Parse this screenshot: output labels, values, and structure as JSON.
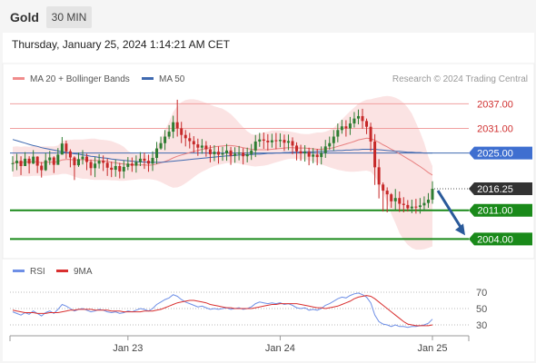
{
  "header": {
    "symbol": "Gold",
    "timeframe": "30 MIN",
    "timestamp": "Thursday, January 25, 2024 1:14:21 AM CET"
  },
  "legend": {
    "ma20": "MA 20 + Bollinger Bands",
    "ma50": "MA 50",
    "credit": "Research © 2024 Trading Central",
    "rsi": "RSI",
    "rsi_ma": "9MA"
  },
  "colors": {
    "up": "#2e7d32",
    "down": "#c62828",
    "resistance": "#f0a0a0",
    "support": "#1a8a1a",
    "ma50": "#3f69b0",
    "bb": "#fbe3e3",
    "ma20": "#e88080",
    "rsi": "#6e8fe6",
    "rsi_ma": "#d93030",
    "arrow": "#2a5a9a",
    "price_tag": "#333333",
    "ma_tag": "#3f6fd0"
  },
  "chart_data": [
    {
      "type": "candlestick",
      "ylim": [
        1999.2,
        2041.3
      ],
      "levels": [
        {
          "value": 2037.0,
          "label": "2037.00",
          "kind": "resistance"
        },
        {
          "value": 2031.0,
          "label": "2031.00",
          "kind": "resistance"
        },
        {
          "value": 2011.0,
          "label": "2011.00",
          "kind": "support"
        },
        {
          "value": 2004.0,
          "label": "2004.00",
          "kind": "support"
        }
      ],
      "ma50_value": {
        "value": 2025.0,
        "label": "2025.00"
      },
      "last_price": {
        "value": 2016.25,
        "label": "2016.25"
      },
      "target": 2004.0,
      "x_ticks": [
        "Jan 23",
        "Jan 24",
        "Jan 25"
      ],
      "close": [
        2022.5,
        2023.1,
        2021.8,
        2023.6,
        2022.4,
        2024.1,
        2021.9,
        2020.8,
        2023.2,
        2023.9,
        2022.1,
        2024.6,
        2027.3,
        2025.4,
        2023.9,
        2022.0,
        2023.5,
        2024.1,
        2022.8,
        2021.3,
        2022.4,
        2023.1,
        2022.6,
        2021.4,
        2020.9,
        2021.8,
        2020.5,
        2021.6,
        2022.4,
        2021.9,
        2022.8,
        2023.6,
        2023.1,
        2022.4,
        2023.8,
        2026.1,
        2027.4,
        2029.0,
        2030.2,
        2032.5,
        2031.0,
        2029.4,
        2028.6,
        2027.9,
        2027.1,
        2026.3,
        2026.8,
        2025.9,
        2024.7,
        2025.3,
        2024.6,
        2024.9,
        2025.6,
        2024.3,
        2024.8,
        2025.1,
        2024.2,
        2024.7,
        2025.6,
        2027.8,
        2028.3,
        2028.0,
        2027.6,
        2028.1,
        2027.9,
        2028.2,
        2027.5,
        2027.9,
        2026.8,
        2025.4,
        2024.9,
        2025.3,
        2024.1,
        2024.6,
        2024.0,
        2025.0,
        2026.6,
        2027.4,
        2029.0,
        2030.6,
        2031.5,
        2031.0,
        2032.2,
        2033.4,
        2034.0,
        2032.8,
        2031.4,
        2027.8,
        2021.5,
        2017.3,
        2015.8,
        2014.9,
        2013.2,
        2014.0,
        2012.6,
        2012.3,
        2011.5,
        2011.9,
        2011.8,
        2012.2,
        2012.8,
        2013.6,
        2016.25
      ],
      "high": [
        2024.2,
        2024.8,
        2024.2,
        2025.2,
        2024.2,
        2025.7,
        2024.2,
        2022.8,
        2025.0,
        2025.5,
        2024.2,
        2026.2,
        2028.9,
        2028.0,
        2025.9,
        2024.2,
        2025.1,
        2025.7,
        2024.8,
        2023.4,
        2024.0,
        2024.7,
        2024.4,
        2023.6,
        2022.9,
        2023.4,
        2022.6,
        2023.2,
        2024.0,
        2023.9,
        2024.4,
        2025.2,
        2025.1,
        2024.6,
        2025.4,
        2027.7,
        2029.0,
        2030.6,
        2031.8,
        2034.1,
        2038.0,
        2032.6,
        2030.6,
        2029.9,
        2029.1,
        2028.5,
        2028.4,
        2027.9,
        2026.9,
        2026.9,
        2026.6,
        2026.5,
        2027.2,
        2026.5,
        2026.4,
        2026.7,
        2026.2,
        2026.3,
        2027.2,
        2029.4,
        2029.9,
        2030.0,
        2029.6,
        2029.7,
        2029.9,
        2029.8,
        2029.5,
        2029.5,
        2028.8,
        2027.6,
        2027.0,
        2026.9,
        2026.3,
        2026.2,
        2026.0,
        2026.6,
        2028.2,
        2029.0,
        2030.6,
        2032.2,
        2033.1,
        2033.0,
        2033.8,
        2035.0,
        2035.6,
        2035.8,
        2033.4,
        2032.4,
        2029.6,
        2023.5,
        2017.8,
        2016.6,
        2015.2,
        2016.2,
        2015.6,
        2014.2,
        2013.5,
        2013.6,
        2013.8,
        2014.0,
        2014.4,
        2015.2,
        2018.1
      ],
      "low": [
        2020.5,
        2020.8,
        2019.6,
        2021.8,
        2020.0,
        2022.3,
        2020.1,
        2019.0,
        2020.6,
        2022.1,
        2020.1,
        2022.3,
        2024.6,
        2023.6,
        2021.5,
        2018.4,
        2021.6,
        2022.2,
        2020.8,
        2019.5,
        2019.1,
        2021.2,
        2020.6,
        2019.4,
        2019.1,
        2019.2,
        2018.8,
        2018.8,
        2020.8,
        2020.4,
        2020.2,
        2021.8,
        2021.1,
        2020.4,
        2020.6,
        2022.3,
        2025.8,
        2025.7,
        2028.4,
        2028.6,
        2029.0,
        2027.4,
        2026.6,
        2026.1,
        2025.1,
        2024.3,
        2024.8,
        2024.1,
        2022.7,
        2023.0,
        2022.4,
        2023.1,
        2023.1,
        2022.1,
        2022.6,
        2023.2,
        2022.2,
        2022.7,
        2023.3,
        2024.0,
        2026.5,
        2026.0,
        2025.6,
        2026.3,
        2025.9,
        2026.4,
        2025.5,
        2025.7,
        2024.7,
        2023.2,
        2023.1,
        2022.9,
        2022.0,
        2022.5,
        2022.0,
        2022.2,
        2023.8,
        2025.8,
        2025.6,
        2027.6,
        2029.7,
        2029.0,
        2029.4,
        2031.2,
        2032.0,
        2030.9,
        2029.6,
        2025.4,
        2017.2,
        2013.9,
        2010.7,
        2010.5,
        2011.6,
        2011.1,
        2010.6,
        2010.5,
        2010.7,
        2010.3,
        2010.2,
        2010.2,
        2010.8,
        2011.6,
        2012.6
      ],
      "ma20": [
        2022.6,
        2022.7,
        2022.6,
        2022.8,
        2022.8,
        2022.9,
        2022.8,
        2022.6,
        2022.7,
        2022.8,
        2022.7,
        2022.9,
        2023.3,
        2023.4,
        2023.4,
        2023.3,
        2023.3,
        2023.4,
        2023.3,
        2023.2,
        2023.2,
        2023.1,
        2023.1,
        2022.9,
        2022.7,
        2022.6,
        2022.4,
        2022.3,
        2022.2,
        2022.1,
        2022.1,
        2022.1,
        2022.1,
        2022.0,
        2022.1,
        2022.3,
        2022.6,
        2022.9,
        2023.3,
        2023.8,
        2024.2,
        2024.5,
        2024.8,
        2025.1,
        2025.4,
        2025.6,
        2025.9,
        2026.1,
        2026.3,
        2026.5,
        2026.6,
        2026.7,
        2026.8,
        2026.8,
        2026.7,
        2026.5,
        2026.3,
        2026.1,
        2025.9,
        2025.8,
        2025.8,
        2025.8,
        2025.8,
        2025.9,
        2026.0,
        2026.1,
        2026.2,
        2026.3,
        2026.3,
        2026.2,
        2026.2,
        2026.2,
        2026.1,
        2026.0,
        2025.9,
        2025.9,
        2026.0,
        2026.1,
        2026.3,
        2026.6,
        2026.9,
        2027.2,
        2027.5,
        2027.8,
        2028.2,
        2028.4,
        2028.6,
        2028.5,
        2028.1,
        2027.6,
        2027.0,
        2026.5,
        2025.9,
        2025.4,
        2024.8,
        2024.2,
        2023.6,
        2023.0,
        2022.3,
        2021.7,
        2021.0,
        2020.2,
        2019.6
      ],
      "bb_upper": [
        2026.5,
        2026.6,
        2026.5,
        2026.6,
        2026.5,
        2026.7,
        2026.6,
        2026.6,
        2026.6,
        2026.6,
        2026.6,
        2026.8,
        2027.9,
        2028.2,
        2028.2,
        2028.3,
        2028.3,
        2028.3,
        2028.4,
        2028.5,
        2028.5,
        2028.3,
        2028.2,
        2028.1,
        2027.9,
        2027.5,
        2027.1,
        2026.5,
        2025.5,
        2024.9,
        2024.8,
        2024.7,
        2024.6,
        2024.4,
        2024.8,
        2026.5,
        2028.4,
        2030.6,
        2032.6,
        2035.0,
        2036.4,
        2037.4,
        2037.9,
        2038.1,
        2038.1,
        2037.9,
        2037.6,
        2037.2,
        2036.8,
        2036.4,
        2036.1,
        2035.8,
        2035.2,
        2034.5,
        2033.5,
        2032.4,
        2031.3,
        2030.3,
        2029.6,
        2029.4,
        2029.7,
        2030.0,
        2030.2,
        2030.5,
        2030.5,
        2030.5,
        2030.4,
        2030.3,
        2030.1,
        2029.9,
        2029.7,
        2029.6,
        2029.6,
        2029.8,
        2030.0,
        2030.0,
        2030.2,
        2030.6,
        2031.2,
        2032.1,
        2033.2,
        2034.2,
        2035.2,
        2036.1,
        2037.0,
        2037.6,
        2038.0,
        2038.1,
        2038.4,
        2038.6,
        2038.8,
        2038.9,
        2038.8,
        2038.5,
        2038.0,
        2037.2,
        2036.1,
        2034.6,
        2032.4,
        2030.1,
        2027.5,
        2024.1,
        2021.8
      ],
      "bb_lower": [
        2019.2,
        2019.2,
        2019.3,
        2019.3,
        2019.3,
        2019.4,
        2019.4,
        2019.4,
        2019.4,
        2019.5,
        2019.6,
        2019.7,
        2019.9,
        2019.9,
        2019.6,
        2019.2,
        2018.9,
        2018.7,
        2018.7,
        2018.5,
        2018.4,
        2018.4,
        2018.4,
        2018.4,
        2018.3,
        2018.3,
        2018.2,
        2018.2,
        2018.3,
        2018.4,
        2018.5,
        2018.6,
        2018.6,
        2018.6,
        2018.5,
        2018.3,
        2017.9,
        2017.4,
        2016.9,
        2016.5,
        2016.6,
        2017.0,
        2017.6,
        2018.3,
        2019.1,
        2019.8,
        2020.4,
        2020.9,
        2021.4,
        2021.8,
        2022.1,
        2022.3,
        2022.5,
        2022.6,
        2022.6,
        2022.4,
        2022.2,
        2022.0,
        2021.8,
        2021.7,
        2021.8,
        2021.9,
        2022.1,
        2022.4,
        2022.7,
        2023.0,
        2023.3,
        2023.5,
        2023.6,
        2023.6,
        2023.5,
        2023.4,
        2023.2,
        2022.9,
        2022.6,
        2022.2,
        2021.9,
        2021.5,
        2021.2,
        2020.9,
        2020.7,
        2020.5,
        2020.4,
        2020.4,
        2020.5,
        2020.6,
        2020.7,
        2020.4,
        2019.3,
        2017.6,
        2015.4,
        2012.9,
        2010.1,
        2007.9,
        2005.4,
        2003.8,
        2002.6,
        2001.8,
        2001.4,
        2001.4,
        2001.5,
        2001.8,
        2002.2
      ],
      "ma50": [
        2028.3,
        2028.0,
        2027.7,
        2027.4,
        2027.1,
        2026.8,
        2026.6,
        2026.3,
        2026.1,
        2025.9,
        2025.7,
        2025.5,
        2025.3,
        2025.2,
        2025.0,
        2024.8,
        2024.7,
        2024.5,
        2024.4,
        2024.2,
        2024.1,
        2023.9,
        2023.8,
        2023.7,
        2023.5,
        2023.4,
        2023.3,
        2023.2,
        2023.1,
        2023.0,
        2022.9,
        2022.8,
        2022.8,
        2022.7,
        2022.7,
        2022.7,
        2022.7,
        2022.8,
        2022.9,
        2023.0,
        2023.1,
        2023.2,
        2023.3,
        2023.4,
        2023.5,
        2023.6,
        2023.7,
        2023.8,
        2023.9,
        2024.0,
        2024.1,
        2024.2,
        2024.3,
        2024.3,
        2024.4,
        2024.5,
        2024.5,
        2024.6,
        2024.6,
        2024.7,
        2024.7,
        2024.8,
        2024.9,
        2024.9,
        2025.0,
        2025.0,
        2025.1,
        2025.1,
        2025.2,
        2025.2,
        2025.2,
        2025.3,
        2025.3,
        2025.3,
        2025.4,
        2025.4,
        2025.4,
        2025.5,
        2025.5,
        2025.6,
        2025.6,
        2025.7,
        2025.7,
        2025.8,
        2025.8,
        2025.9,
        2025.9,
        2025.9,
        2025.9,
        2025.8,
        2025.7,
        2025.6,
        2025.5,
        2025.4,
        2025.4,
        2025.3,
        2025.2,
        2025.2,
        2025.1,
        2025.1,
        2025.0,
        2025.0,
        2025.0
      ]
    },
    {
      "type": "line",
      "title": "RSI",
      "ylim": [
        20,
        80
      ],
      "y_ticks": [
        70,
        50,
        30
      ],
      "series": [
        {
          "name": "RSI",
          "values": [
            46,
            44,
            42,
            45,
            43,
            47,
            44,
            41,
            45,
            47,
            44,
            49,
            55,
            53,
            50,
            47,
            49,
            50,
            48,
            46,
            47,
            49,
            48,
            46,
            45,
            46,
            44,
            45,
            47,
            46,
            48,
            50,
            49,
            47,
            50,
            55,
            58,
            61,
            63,
            67,
            65,
            61,
            58,
            56,
            54,
            52,
            53,
            51,
            49,
            50,
            49,
            50,
            51,
            49,
            50,
            51,
            49,
            50,
            52,
            56,
            58,
            57,
            56,
            57,
            56,
            57,
            55,
            56,
            54,
            51,
            50,
            51,
            48,
            49,
            48,
            50,
            54,
            56,
            59,
            62,
            64,
            63,
            66,
            68,
            69,
            67,
            64,
            57,
            42,
            34,
            31,
            30,
            28,
            30,
            28,
            28,
            27,
            28,
            28,
            29,
            30,
            32,
            37
          ]
        },
        {
          "name": "9MA",
          "values": [
            48,
            47,
            46,
            45,
            45,
            45,
            44,
            44,
            44,
            45,
            45,
            45,
            46,
            47,
            48,
            48,
            49,
            49,
            49,
            49,
            48,
            48,
            48,
            48,
            47,
            47,
            47,
            46,
            46,
            46,
            46,
            46,
            47,
            47,
            47,
            48,
            49,
            51,
            53,
            55,
            57,
            58,
            59,
            60,
            60,
            59,
            58,
            57,
            55,
            54,
            53,
            52,
            51,
            51,
            50,
            50,
            50,
            50,
            50,
            51,
            52,
            53,
            54,
            55,
            55,
            56,
            56,
            56,
            56,
            56,
            55,
            54,
            53,
            52,
            51,
            51,
            50,
            51,
            52,
            53,
            55,
            57,
            59,
            62,
            64,
            65,
            66,
            65,
            62,
            58,
            54,
            50,
            46,
            42,
            38,
            34,
            31,
            30,
            29,
            29,
            29,
            29,
            30
          ]
        }
      ]
    }
  ]
}
